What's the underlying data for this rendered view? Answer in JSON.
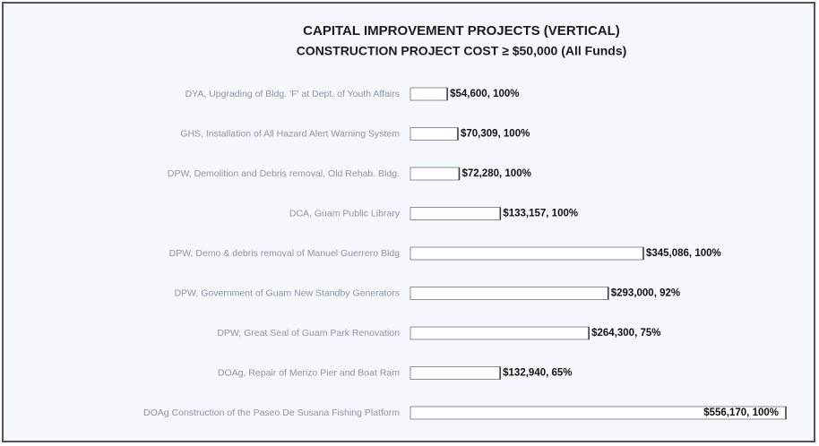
{
  "chart_data": {
    "type": "hbar",
    "title": "CAPITAL IMPROVEMENT PROJECTS (VERTICAL)",
    "subtitle": "CONSTRUCTION PROJECT COST ≥ $50,000 (All Funds)",
    "categories": [
      "DYA, Upgrading of Bldg. 'F' at Dept. of Youth Affairs",
      "GHS, Installation of All Hazard Alert Warning System",
      "DPW, Demolition and Debris removal, Old Rehab. Bldg.",
      "DCA, Guam Public Library",
      "DPW, Demo & debris removal of Manuel Guerrero Bldg",
      "DPW, Government of Guam New Standby Generators",
      "DPW, Great Seal of Guam Park Renovation",
      "DOAg, Repair of Merizo Pier and Boat Ram",
      "DOAg Construction of the Paseo De Susana Fishing Platform"
    ],
    "values": [
      54600,
      70309,
      72280,
      133157,
      345086,
      293000,
      264300,
      132940,
      556170
    ],
    "value_labels": [
      "$54,600, 100%",
      "$70,309, 100%",
      "$72,280, 100%",
      "$133,157, 100%",
      "$345,086, 100%",
      "$293,000, 92%",
      "$264,300, 75%",
      "$132,940, 65%",
      "$556,170, 100%"
    ],
    "color": "#ffffff"
  }
}
